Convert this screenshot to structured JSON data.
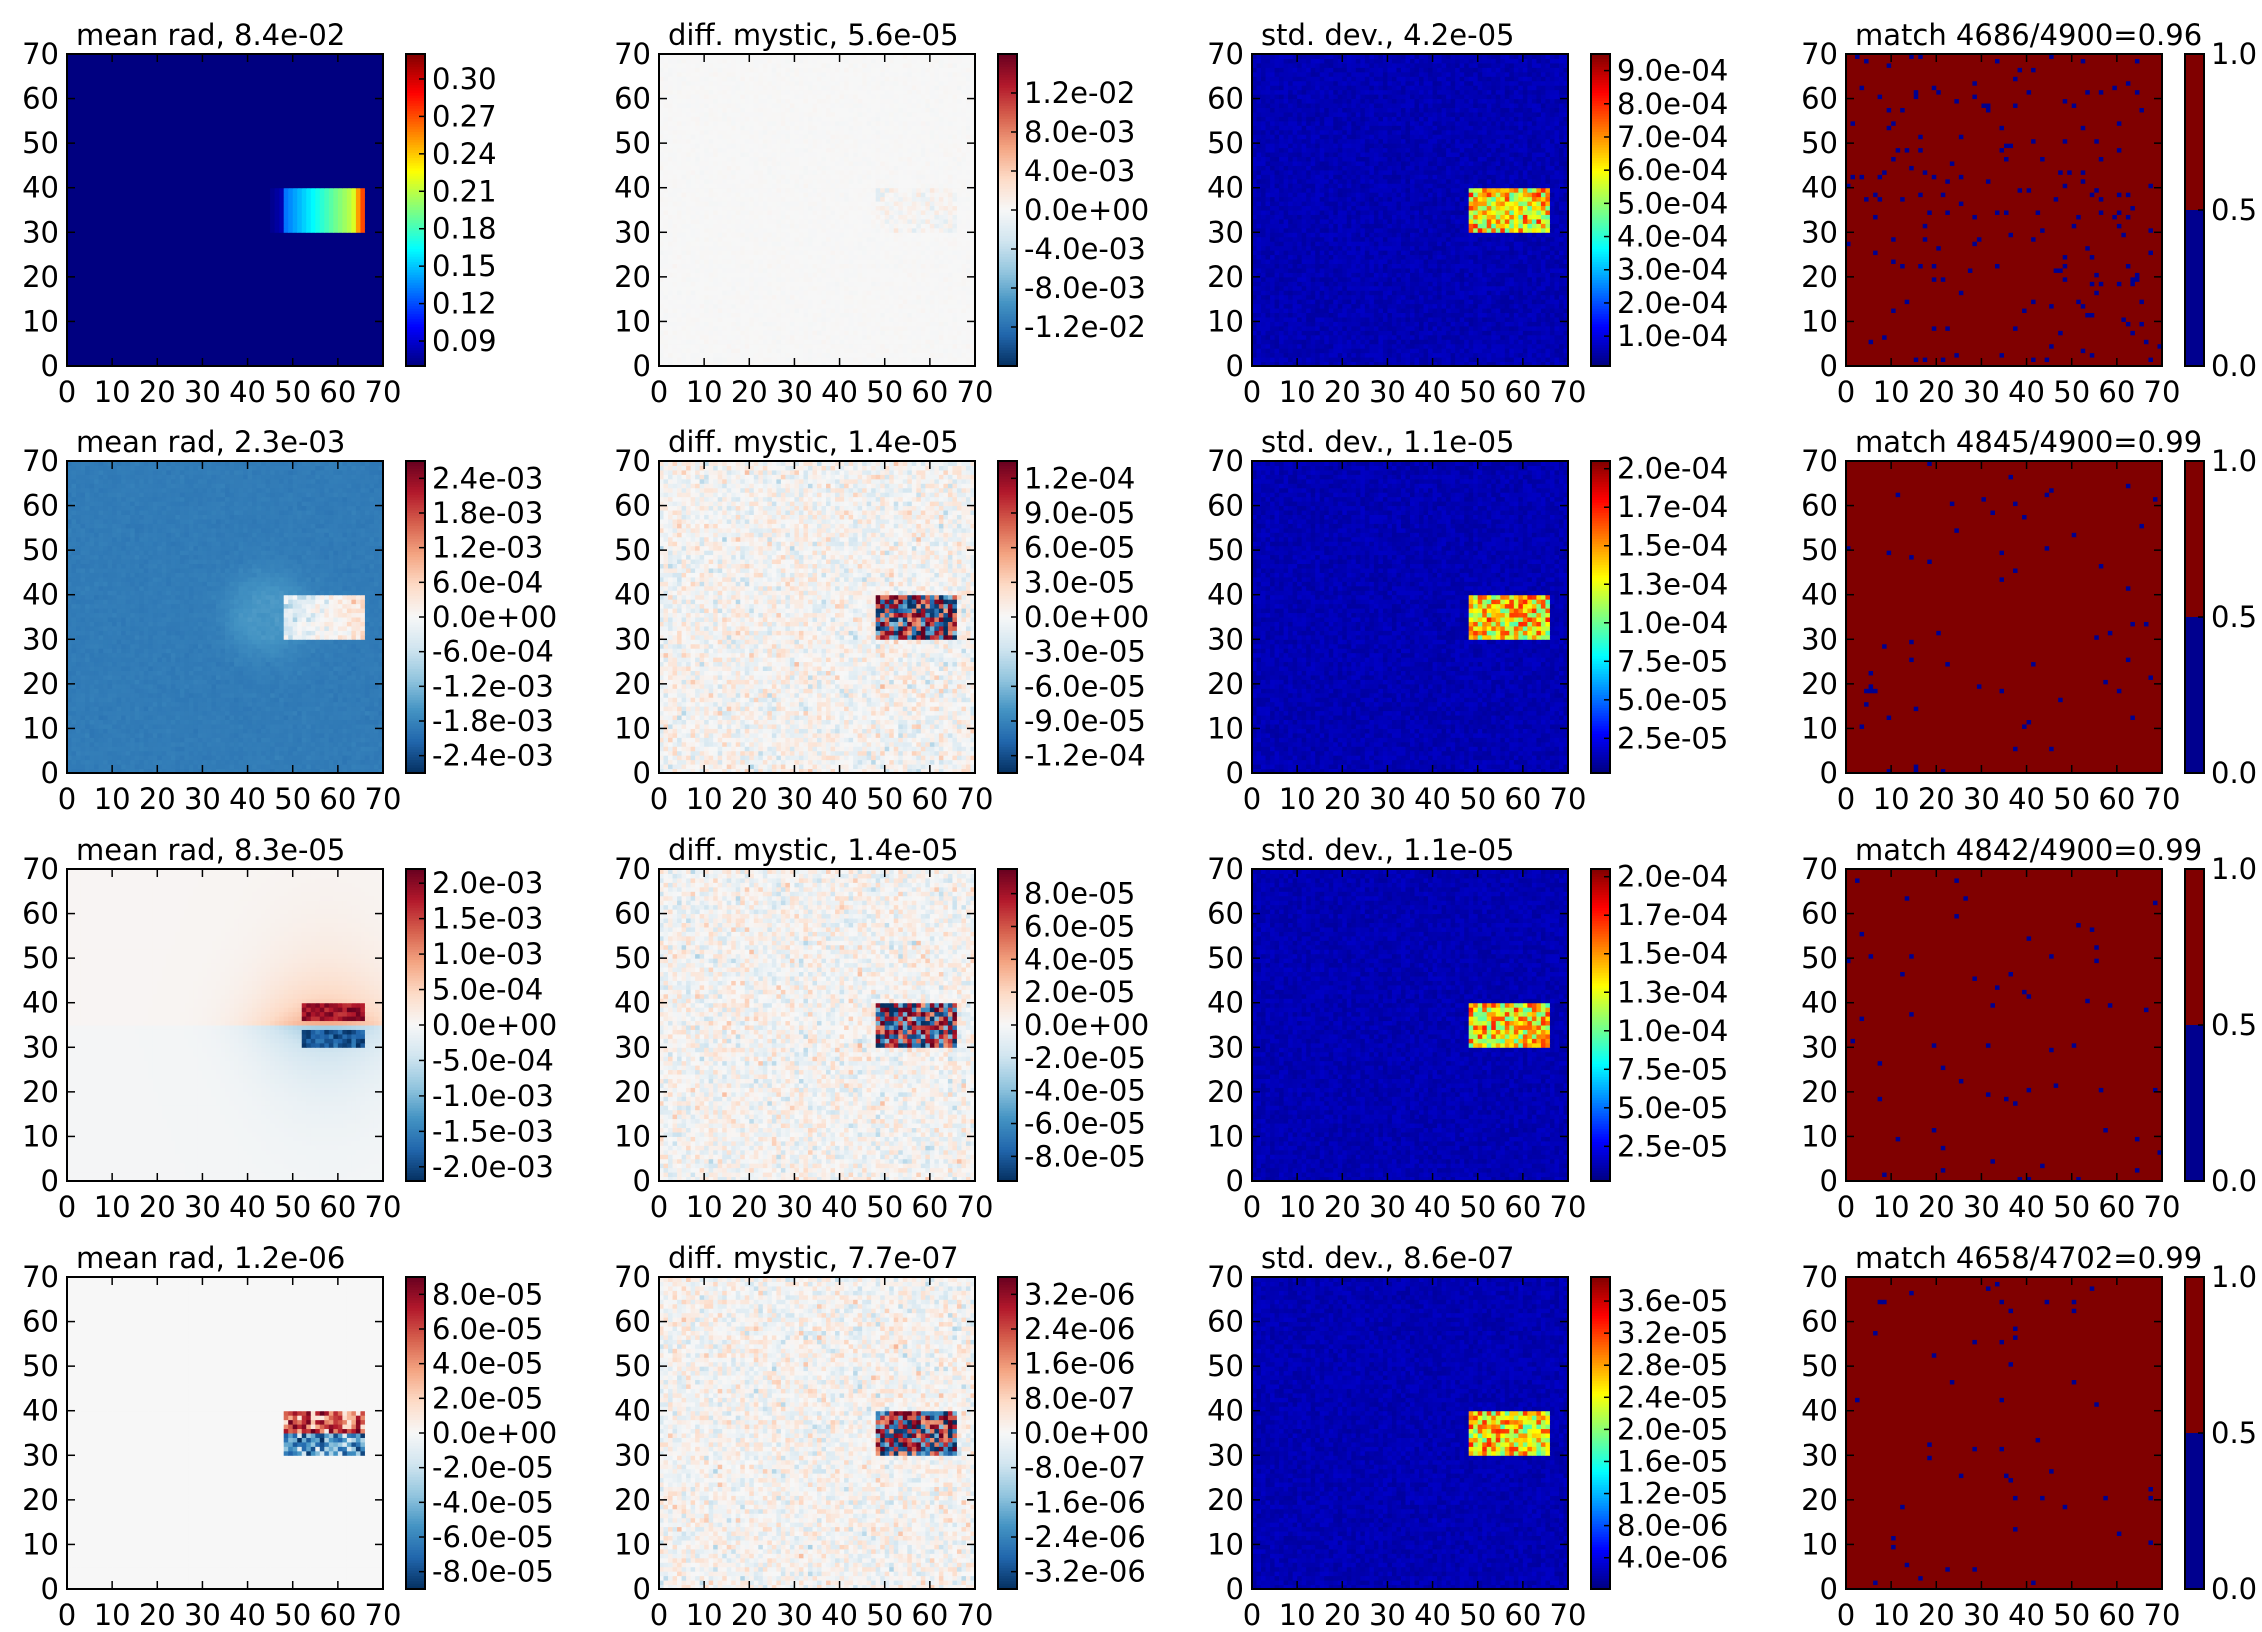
{
  "figure": {
    "rows": 4,
    "cols": 4
  },
  "chart_data": [
    {
      "type": "heatmap",
      "title": "mean rad, 8.4e-02",
      "colormap": "jet",
      "pattern": "radiance",
      "xticks": [
        "0",
        "10",
        "20",
        "30",
        "40",
        "50",
        "60",
        "70"
      ],
      "yticks": [
        "0",
        "10",
        "20",
        "30",
        "40",
        "50",
        "60",
        "70"
      ],
      "xlim": [
        0,
        70
      ],
      "ylim": [
        0,
        70
      ],
      "clim": [
        0.07,
        0.32
      ],
      "colorbar": {
        "ticks": [
          0.3,
          0.27,
          0.24,
          0.21,
          0.18,
          0.15,
          0.12,
          0.09
        ],
        "labels": [
          "0.30",
          "0.27",
          "0.24",
          "0.21",
          "0.18",
          "0.15",
          "0.12",
          "0.09"
        ]
      },
      "background_value": 0.07,
      "box": {
        "x": [
          48,
          66
        ],
        "y": [
          30,
          40
        ]
      }
    },
    {
      "type": "heatmap",
      "title": "diff. mystic, 5.6e-05",
      "colormap": "RdBu_r",
      "pattern": "faint_noise",
      "xticks": [
        "0",
        "10",
        "20",
        "30",
        "40",
        "50",
        "60",
        "70"
      ],
      "yticks": [
        "0",
        "10",
        "20",
        "30",
        "40",
        "50",
        "60",
        "70"
      ],
      "xlim": [
        0,
        70
      ],
      "ylim": [
        0,
        70
      ],
      "clim": [
        -0.016,
        0.016
      ],
      "colorbar": {
        "ticks": [
          0.012,
          0.008,
          0.004,
          0.0,
          -0.004,
          -0.008,
          -0.012
        ],
        "labels": [
          "1.2e-02",
          "8.0e-03",
          "4.0e-03",
          "0.0e+00",
          "-4.0e-03",
          "-8.0e-03",
          "-1.2e-02"
        ]
      },
      "box": {
        "x": [
          48,
          66
        ],
        "y": [
          30,
          40
        ]
      }
    },
    {
      "type": "heatmap",
      "title": "std. dev., 4.2e-05",
      "colormap": "jet",
      "pattern": "box_noise",
      "xticks": [
        "0",
        "10",
        "20",
        "30",
        "40",
        "50",
        "60",
        "70"
      ],
      "yticks": [
        "0",
        "10",
        "20",
        "30",
        "40",
        "50",
        "60",
        "70"
      ],
      "xlim": [
        0,
        70
      ],
      "ylim": [
        0,
        70
      ],
      "clim": [
        1e-05,
        0.00095
      ],
      "colorbar": {
        "ticks": [
          0.0009,
          0.0008,
          0.0007,
          0.0006,
          0.0005,
          0.0004,
          0.0003,
          0.0002,
          0.0001
        ],
        "labels": [
          "9.0e-04",
          "8.0e-04",
          "7.0e-04",
          "6.0e-04",
          "5.0e-04",
          "4.0e-04",
          "3.0e-04",
          "2.0e-04",
          "1.0e-04"
        ]
      },
      "box": {
        "x": [
          48,
          66
        ],
        "y": [
          30,
          40
        ]
      }
    },
    {
      "type": "heatmap",
      "title": "match 4686/4900=0.96",
      "colormap": "binary_jet",
      "pattern": "match",
      "fraction": 0.96,
      "xticks": [
        "0",
        "10",
        "20",
        "30",
        "40",
        "50",
        "60",
        "70"
      ],
      "yticks": [
        "0",
        "10",
        "20",
        "30",
        "40",
        "50",
        "60",
        "70"
      ],
      "xlim": [
        0,
        70
      ],
      "ylim": [
        0,
        70
      ],
      "clim": [
        0,
        1
      ],
      "colorbar": {
        "ticks": [
          1.0,
          0.5,
          0.0
        ],
        "labels": [
          "1.0",
          "0.5",
          "0.0"
        ]
      }
    },
    {
      "type": "heatmap",
      "title": "mean rad, 2.3e-03",
      "colormap": "RdBu_r",
      "pattern": "rad_row2",
      "xticks": [
        "0",
        "10",
        "20",
        "30",
        "40",
        "50",
        "60",
        "70"
      ],
      "yticks": [
        "0",
        "10",
        "20",
        "30",
        "40",
        "50",
        "60",
        "70"
      ],
      "xlim": [
        0,
        70
      ],
      "ylim": [
        0,
        70
      ],
      "clim": [
        -0.0027,
        0.0027
      ],
      "colorbar": {
        "ticks": [
          0.0024,
          0.0018,
          0.0012,
          0.0006,
          0.0,
          -0.0006,
          -0.0012,
          -0.0018,
          -0.0024
        ],
        "labels": [
          "2.4e-03",
          "1.8e-03",
          "1.2e-03",
          "6.0e-04",
          "0.0e+00",
          "-6.0e-04",
          "-1.2e-03",
          "-1.8e-03",
          "-2.4e-03"
        ]
      },
      "box": {
        "x": [
          48,
          66
        ],
        "y": [
          30,
          40
        ]
      }
    },
    {
      "type": "heatmap",
      "title": "diff. mystic, 1.4e-05",
      "colormap": "RdBu_r",
      "pattern": "diff_noise",
      "xticks": [
        "0",
        "10",
        "20",
        "30",
        "40",
        "50",
        "60",
        "70"
      ],
      "yticks": [
        "0",
        "10",
        "20",
        "30",
        "40",
        "50",
        "60",
        "70"
      ],
      "xlim": [
        0,
        70
      ],
      "ylim": [
        0,
        70
      ],
      "clim": [
        -0.000135,
        0.000135
      ],
      "colorbar": {
        "ticks": [
          0.00012,
          9e-05,
          6e-05,
          3e-05,
          0.0,
          -3e-05,
          -6e-05,
          -9e-05,
          -0.00012
        ],
        "labels": [
          "1.2e-04",
          "9.0e-05",
          "6.0e-05",
          "3.0e-05",
          "0.0e+00",
          "-3.0e-05",
          "-6.0e-05",
          "-9.0e-05",
          "-1.2e-04"
        ]
      },
      "box": {
        "x": [
          48,
          66
        ],
        "y": [
          30,
          40
        ]
      }
    },
    {
      "type": "heatmap",
      "title": "std. dev., 1.1e-05",
      "colormap": "jet",
      "pattern": "box_noise",
      "xticks": [
        "0",
        "10",
        "20",
        "30",
        "40",
        "50",
        "60",
        "70"
      ],
      "yticks": [
        "0",
        "10",
        "20",
        "30",
        "40",
        "50",
        "60",
        "70"
      ],
      "xlim": [
        0,
        70
      ],
      "ylim": [
        0,
        70
      ],
      "clim": [
        2.5e-06,
        0.000205
      ],
      "colorbar": {
        "ticks": [
          0.0002,
          0.000175,
          0.00015,
          0.000125,
          0.0001,
          7.5e-05,
          5e-05,
          2.5e-05
        ],
        "labels": [
          "2.0e-04",
          "1.7e-04",
          "1.5e-04",
          "1.3e-04",
          "1.0e-04",
          "7.5e-05",
          "5.0e-05",
          "2.5e-05"
        ]
      },
      "box": {
        "x": [
          48,
          66
        ],
        "y": [
          30,
          40
        ]
      }
    },
    {
      "type": "heatmap",
      "title": "match 4845/4900=0.99",
      "colormap": "binary_jet",
      "pattern": "match",
      "fraction": 0.99,
      "xticks": [
        "0",
        "10",
        "20",
        "30",
        "40",
        "50",
        "60",
        "70"
      ],
      "yticks": [
        "0",
        "10",
        "20",
        "30",
        "40",
        "50",
        "60",
        "70"
      ],
      "xlim": [
        0,
        70
      ],
      "ylim": [
        0,
        70
      ],
      "clim": [
        0,
        1
      ],
      "colorbar": {
        "ticks": [
          1.0,
          0.5,
          0.0
        ],
        "labels": [
          "1.0",
          "0.5",
          "0.0"
        ]
      }
    },
    {
      "type": "heatmap",
      "title": "mean rad, 8.3e-05",
      "colormap": "RdBu_r",
      "pattern": "rad_row3",
      "xticks": [
        "0",
        "10",
        "20",
        "30",
        "40",
        "50",
        "60",
        "70"
      ],
      "yticks": [
        "0",
        "10",
        "20",
        "30",
        "40",
        "50",
        "60",
        "70"
      ],
      "xlim": [
        0,
        70
      ],
      "ylim": [
        0,
        70
      ],
      "clim": [
        -0.0022,
        0.0022
      ],
      "colorbar": {
        "ticks": [
          0.002,
          0.0015,
          0.001,
          0.0005,
          0.0,
          -0.0005,
          -0.001,
          -0.0015,
          -0.002
        ],
        "labels": [
          "2.0e-03",
          "1.5e-03",
          "1.0e-03",
          "5.0e-04",
          "0.0e+00",
          "-5.0e-04",
          "-1.0e-03",
          "-1.5e-03",
          "-2.0e-03"
        ]
      },
      "box": {
        "x": [
          48,
          66
        ],
        "y": [
          30,
          40
        ]
      }
    },
    {
      "type": "heatmap",
      "title": "diff. mystic, 1.4e-05",
      "colormap": "RdBu_r",
      "pattern": "diff_noise",
      "xticks": [
        "0",
        "10",
        "20",
        "30",
        "40",
        "50",
        "60",
        "70"
      ],
      "yticks": [
        "0",
        "10",
        "20",
        "30",
        "40",
        "50",
        "60",
        "70"
      ],
      "xlim": [
        0,
        70
      ],
      "ylim": [
        0,
        70
      ],
      "clim": [
        -9.5e-05,
        9.5e-05
      ],
      "colorbar": {
        "ticks": [
          8e-05,
          6e-05,
          4e-05,
          2e-05,
          0.0,
          -2e-05,
          -4e-05,
          -6e-05,
          -8e-05
        ],
        "labels": [
          "8.0e-05",
          "6.0e-05",
          "4.0e-05",
          "2.0e-05",
          "0.0e+00",
          "-2.0e-05",
          "-4.0e-05",
          "-6.0e-05",
          "-8.0e-05"
        ]
      },
      "box": {
        "x": [
          48,
          66
        ],
        "y": [
          30,
          40
        ]
      }
    },
    {
      "type": "heatmap",
      "title": "std. dev., 1.1e-05",
      "colormap": "jet",
      "pattern": "box_noise",
      "xticks": [
        "0",
        "10",
        "20",
        "30",
        "40",
        "50",
        "60",
        "70"
      ],
      "yticks": [
        "0",
        "10",
        "20",
        "30",
        "40",
        "50",
        "60",
        "70"
      ],
      "xlim": [
        0,
        70
      ],
      "ylim": [
        0,
        70
      ],
      "clim": [
        2.5e-06,
        0.000205
      ],
      "colorbar": {
        "ticks": [
          0.0002,
          0.000175,
          0.00015,
          0.000125,
          0.0001,
          7.5e-05,
          5e-05,
          2.5e-05
        ],
        "labels": [
          "2.0e-04",
          "1.7e-04",
          "1.5e-04",
          "1.3e-04",
          "1.0e-04",
          "7.5e-05",
          "5.0e-05",
          "2.5e-05"
        ]
      },
      "box": {
        "x": [
          48,
          66
        ],
        "y": [
          30,
          40
        ]
      }
    },
    {
      "type": "heatmap",
      "title": "match 4842/4900=0.99",
      "colormap": "binary_jet",
      "pattern": "match",
      "fraction": 0.99,
      "xticks": [
        "0",
        "10",
        "20",
        "30",
        "40",
        "50",
        "60",
        "70"
      ],
      "yticks": [
        "0",
        "10",
        "20",
        "30",
        "40",
        "50",
        "60",
        "70"
      ],
      "xlim": [
        0,
        70
      ],
      "ylim": [
        0,
        70
      ],
      "clim": [
        0,
        1
      ],
      "colorbar": {
        "ticks": [
          1.0,
          0.5,
          0.0
        ],
        "labels": [
          "1.0",
          "0.5",
          "0.0"
        ]
      }
    },
    {
      "type": "heatmap",
      "title": "mean rad, 1.2e-06",
      "colormap": "RdBu_r",
      "pattern": "rad_row4",
      "xticks": [
        "0",
        "10",
        "20",
        "30",
        "40",
        "50",
        "60",
        "70"
      ],
      "yticks": [
        "0",
        "10",
        "20",
        "30",
        "40",
        "50",
        "60",
        "70"
      ],
      "xlim": [
        0,
        70
      ],
      "ylim": [
        0,
        70
      ],
      "clim": [
        -9e-05,
        9e-05
      ],
      "colorbar": {
        "ticks": [
          8e-05,
          6e-05,
          4e-05,
          2e-05,
          0.0,
          -2e-05,
          -4e-05,
          -6e-05,
          -8e-05
        ],
        "labels": [
          "8.0e-05",
          "6.0e-05",
          "4.0e-05",
          "2.0e-05",
          "0.0e+00",
          "-2.0e-05",
          "-4.0e-05",
          "-6.0e-05",
          "-8.0e-05"
        ]
      },
      "box": {
        "x": [
          48,
          66
        ],
        "y": [
          30,
          40
        ]
      }
    },
    {
      "type": "heatmap",
      "title": "diff. mystic, 7.7e-07",
      "colormap": "RdBu_r",
      "pattern": "diff_noise",
      "xticks": [
        "0",
        "10",
        "20",
        "30",
        "40",
        "50",
        "60",
        "70"
      ],
      "yticks": [
        "0",
        "10",
        "20",
        "30",
        "40",
        "50",
        "60",
        "70"
      ],
      "xlim": [
        0,
        70
      ],
      "ylim": [
        0,
        70
      ],
      "clim": [
        -3.6e-06,
        3.6e-06
      ],
      "colorbar": {
        "ticks": [
          3.2e-06,
          2.4e-06,
          1.6e-06,
          8e-07,
          0.0,
          -8e-07,
          -1.6e-06,
          -2.4e-06,
          -3.2e-06
        ],
        "labels": [
          "3.2e-06",
          "2.4e-06",
          "1.6e-06",
          "8.0e-07",
          "0.0e+00",
          "-8.0e-07",
          "-1.6e-06",
          "-2.4e-06",
          "-3.2e-06"
        ]
      },
      "box": {
        "x": [
          48,
          66
        ],
        "y": [
          30,
          40
        ]
      }
    },
    {
      "type": "heatmap",
      "title": "std. dev., 8.6e-07",
      "colormap": "jet",
      "pattern": "box_noise",
      "xticks": [
        "0",
        "10",
        "20",
        "30",
        "40",
        "50",
        "60",
        "70"
      ],
      "yticks": [
        "0",
        "10",
        "20",
        "30",
        "40",
        "50",
        "60",
        "70"
      ],
      "xlim": [
        0,
        70
      ],
      "ylim": [
        0,
        70
      ],
      "clim": [
        1e-07,
        3.9e-05
      ],
      "colorbar": {
        "ticks": [
          3.6e-05,
          3.2e-05,
          2.8e-05,
          2.4e-05,
          2e-05,
          1.6e-05,
          1.2e-05,
          8e-06,
          4e-06
        ],
        "labels": [
          "3.6e-05",
          "3.2e-05",
          "2.8e-05",
          "2.4e-05",
          "2.0e-05",
          "1.6e-05",
          "1.2e-05",
          "8.0e-06",
          "4.0e-06"
        ]
      },
      "box": {
        "x": [
          48,
          66
        ],
        "y": [
          30,
          40
        ]
      }
    },
    {
      "type": "heatmap",
      "title": "match 4658/4702=0.99",
      "colormap": "binary_jet",
      "pattern": "match",
      "fraction": 0.99,
      "xticks": [
        "0",
        "10",
        "20",
        "30",
        "40",
        "50",
        "60",
        "70"
      ],
      "yticks": [
        "0",
        "10",
        "20",
        "30",
        "40",
        "50",
        "60",
        "70"
      ],
      "xlim": [
        0,
        70
      ],
      "ylim": [
        0,
        70
      ],
      "clim": [
        0,
        1
      ],
      "colorbar": {
        "ticks": [
          1.0,
          0.5,
          0.0
        ],
        "labels": [
          "1.0",
          "0.5",
          "0.0"
        ]
      }
    }
  ]
}
